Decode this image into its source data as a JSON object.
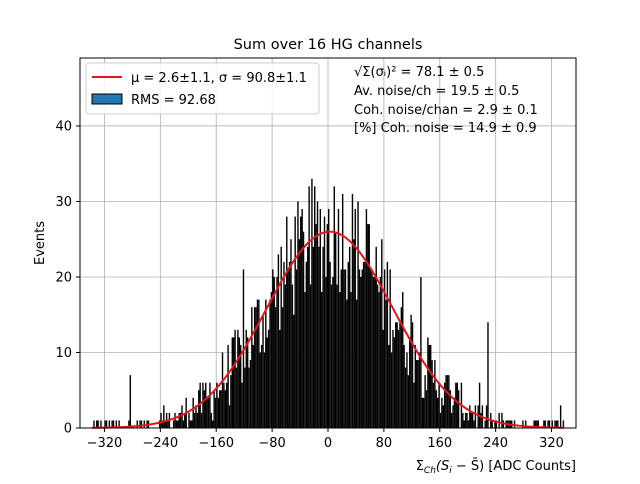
{
  "chart_data": {
    "type": "bar",
    "title": "Sum over 16 HG channels",
    "xlabel_parts": [
      "Σ",
      "Ch",
      "(S",
      "i",
      " − S̄) [ADC Counts]"
    ],
    "ylabel": "Events",
    "xlim": [
      -355,
      355
    ],
    "ylim": [
      0,
      49
    ],
    "xticks": [
      -320,
      -240,
      -160,
      -80,
      0,
      80,
      160,
      240,
      320
    ],
    "xtick_labels": [
      "−320",
      "−240",
      "−160",
      "−80",
      "0",
      "80",
      "160",
      "240",
      "320"
    ],
    "yticks": [
      0,
      10,
      20,
      30,
      40
    ],
    "ytick_labels": [
      "0",
      "10",
      "20",
      "30",
      "40"
    ],
    "grid": true,
    "histogram": {
      "range": [
        -338,
        338
      ],
      "bin_width": 2,
      "sigma_envelope": 90.8,
      "peak_envelope": 26,
      "mean_envelope": 2.6
    },
    "fit": {
      "mu": 2.6,
      "sigma": 90.8,
      "amplitude": 26.0,
      "color": "#e8141c"
    },
    "legend": {
      "position": "top-left",
      "fit_label": "μ = 2.6±1.1, σ = 90.8±1.1",
      "hist_label": "RMS = 92.68",
      "hist_color": "#1f77b4"
    },
    "annotations": [
      "√Σ(σᵢ)² = 78.1 ± 0.5",
      "Av. noise/ch  = 19.5 ± 0.5",
      "Coh. noise/chan  = 2.9 ± 0.1",
      "[%] Coh. noise  = 14.9 ± 0.9"
    ]
  }
}
